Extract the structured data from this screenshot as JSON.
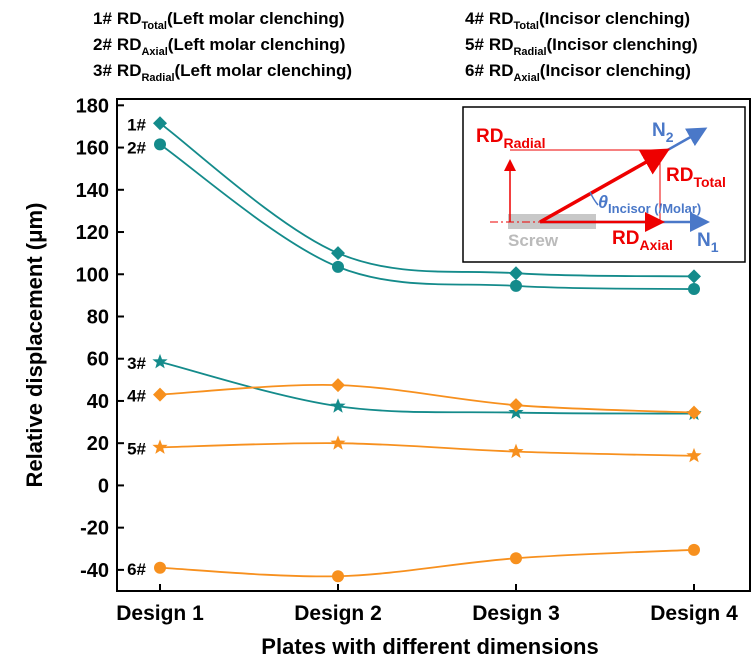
{
  "chart_data": {
    "type": "line",
    "categories": [
      "Design 1",
      "Design 2",
      "Design 3",
      "Design 4"
    ],
    "x_label": "Plates with different dimensions",
    "y_label": "Relative displacement (μm)",
    "ylim": [
      -50,
      183
    ],
    "yticks": [
      -40,
      -20,
      0,
      20,
      40,
      60,
      80,
      100,
      120,
      140,
      160,
      180
    ],
    "series": [
      {
        "name": "1#",
        "legend": {
          "main": "RD",
          "sub": "Total",
          "suffix": "(Left molar clenching)"
        },
        "color": "#148b8b",
        "marker": "diamond",
        "values": [
          171.5,
          110,
          100.5,
          99
        ]
      },
      {
        "name": "2#",
        "legend": {
          "main": "RD",
          "sub": "Axial",
          "suffix": "(Left molar clenching)"
        },
        "color": "#148b8b",
        "marker": "circle",
        "values": [
          161.5,
          103.5,
          94.5,
          93
        ]
      },
      {
        "name": "3#",
        "legend": {
          "main": "RD",
          "sub": "Radial",
          "suffix": "(Left molar clenching)"
        },
        "color": "#148b8b",
        "marker": "star",
        "values": [
          58.5,
          37.5,
          34.5,
          34
        ]
      },
      {
        "name": "4#",
        "legend": {
          "main": "RD",
          "sub": "Total",
          "suffix": "(Incisor clenching)"
        },
        "color": "#f7901e",
        "marker": "diamond",
        "values": [
          43,
          47.5,
          38,
          34.5
        ]
      },
      {
        "name": "5#",
        "legend": {
          "main": "RD",
          "sub": "Radial",
          "suffix": "(Incisor clenching)"
        },
        "color": "#f7901e",
        "marker": "star",
        "values": [
          18,
          20,
          16,
          14
        ]
      },
      {
        "name": "6#",
        "legend": {
          "main": "RD",
          "sub": "Axial",
          "suffix": "(Incisor clenching)"
        },
        "color": "#f7901e",
        "marker": "circle",
        "values": [
          -39,
          -43,
          -34.5,
          -30.5
        ]
      }
    ],
    "inset": {
      "radial": [
        "RD",
        "Radial"
      ],
      "n2": [
        "N",
        "2"
      ],
      "total": [
        "RD",
        "Total"
      ],
      "theta": [
        "θ",
        "Incisor (/Molar)"
      ],
      "screw": "Screw",
      "axial": [
        "RD",
        "Axial"
      ],
      "n1": [
        "N",
        "1"
      ]
    }
  }
}
